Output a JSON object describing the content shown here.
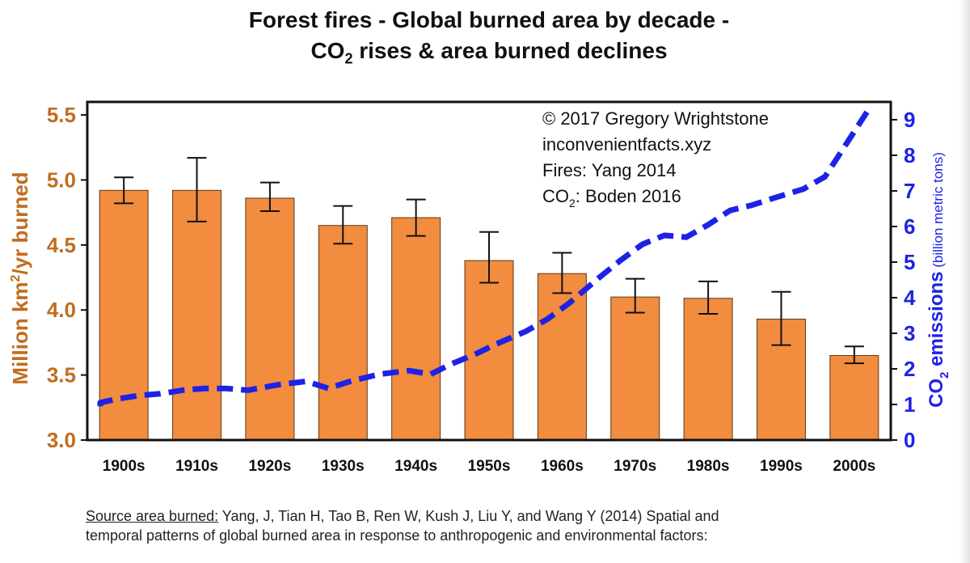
{
  "chart_data": {
    "type": "bar",
    "title_line1": "Forest fires - Global burned area by decade -",
    "title_line2_pre": "CO",
    "title_line2_sub": "2",
    "title_line2_post": " rises & area burned declines",
    "categories": [
      "1900s",
      "1910s",
      "1920s",
      "1930s",
      "1940s",
      "1950s",
      "1960s",
      "1970s",
      "1980s",
      "1990s",
      "2000s"
    ],
    "series": [
      {
        "name": "Area burned",
        "axis": "left",
        "color": "#f28c3f",
        "values": [
          4.92,
          4.92,
          4.86,
          4.65,
          4.71,
          4.38,
          4.28,
          4.1,
          4.09,
          3.93,
          3.65
        ],
        "err_low": [
          4.82,
          4.68,
          4.76,
          4.51,
          4.57,
          4.21,
          4.13,
          3.98,
          3.97,
          3.73,
          3.59
        ],
        "err_high": [
          5.02,
          5.17,
          4.98,
          4.8,
          4.85,
          4.6,
          4.44,
          4.24,
          4.22,
          4.14,
          3.72
        ]
      },
      {
        "name": "CO2 emissions",
        "axis": "right",
        "color": "#1e22e6",
        "style": "dashed",
        "x": [
          1896,
          1900,
          1904,
          1907,
          1910,
          1913,
          1916,
          1919,
          1922,
          1926,
          1930,
          1933,
          1936,
          1940,
          1944,
          1947,
          1950,
          1953,
          1956,
          1960,
          1963,
          1966,
          1970,
          1973,
          1976,
          1979,
          1982,
          1985,
          1988,
          1991,
          1994,
          1998,
          2001,
          2004,
          2007
        ],
        "values": [
          0.95,
          1.05,
          1.15,
          1.25,
          1.3,
          1.4,
          1.45,
          1.45,
          1.4,
          1.55,
          1.65,
          1.45,
          1.65,
          1.85,
          1.95,
          1.85,
          2.15,
          2.4,
          2.7,
          3.05,
          3.4,
          3.85,
          4.55,
          5.05,
          5.5,
          5.75,
          5.7,
          6.05,
          6.45,
          6.6,
          6.8,
          7.05,
          7.4,
          8.35,
          9.3
        ]
      }
    ],
    "y_left": {
      "label_pre": "Million km",
      "label_sup": "2",
      "label_post": "/yr burned",
      "range": [
        3.0,
        5.6
      ],
      "ticks": [
        "3.0",
        "3.5",
        "4.0",
        "4.5",
        "5.0",
        "5.5"
      ],
      "tick_values": [
        3.0,
        3.5,
        4.0,
        4.5,
        5.0,
        5.5
      ],
      "color": "#c06d1e"
    },
    "y_right": {
      "label_pre": "CO",
      "label_sub": "2",
      "label_mid": " emissions",
      "label_post": " (billion metric tons)",
      "range": [
        0,
        9.5
      ],
      "ticks": [
        "0",
        "1",
        "2",
        "3",
        "4",
        "5",
        "6",
        "7",
        "8",
        "9"
      ],
      "tick_values": [
        0,
        1,
        2,
        3,
        4,
        5,
        6,
        7,
        8,
        9
      ],
      "color": "#1e22e6"
    },
    "annotation": {
      "line1": "© 2017 Gregory Wrightstone",
      "line2": "inconvenientfacts.xyz",
      "line3": "Fires: Yang 2014",
      "line4_pre": "CO",
      "line4_sub": "2",
      "line4_post": ": Boden 2016"
    },
    "grid": false
  },
  "source": {
    "label": "Source area burned:",
    "text1": " Yang, J, Tian H, Tao B, Ren W, Kush J, Liu Y, and Wang Y (2014) Spatial and",
    "text2": "temporal patterns of global burned area in response to anthropogenic and environmental factors:"
  }
}
